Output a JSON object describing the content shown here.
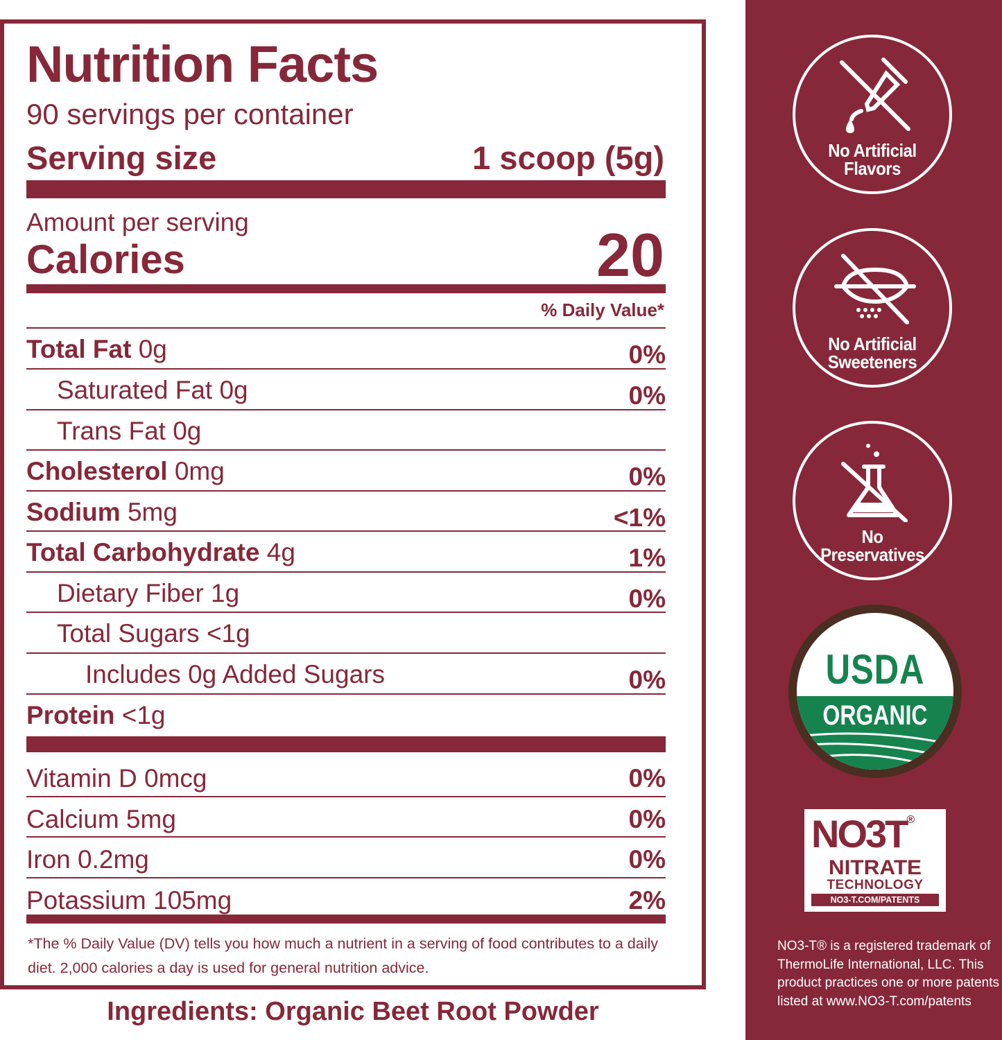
{
  "label": {
    "title": "Nutrition Facts",
    "servings": "90 servings per container",
    "serving_size_label": "Serving size",
    "serving_size_value": "1 scoop (5g)",
    "amount_label": "Amount per serving",
    "calories_label": "Calories",
    "calories_value": "20",
    "dv_header": "% Daily Value*",
    "nutrients": [
      {
        "bold": "Total Fat",
        "text": " 0g",
        "pct": "0%"
      },
      {
        "bold": "",
        "text": "Saturated Fat 0g",
        "pct": "0%"
      },
      {
        "bold": "",
        "text": "Trans Fat 0g",
        "pct": ""
      },
      {
        "bold": "Cholesterol",
        "text": " 0mg",
        "pct": "0%"
      },
      {
        "bold": "Sodium",
        "text": " 5mg",
        "pct": "<1%"
      },
      {
        "bold": "Total Carbohydrate",
        "text": " 4g",
        "pct": "1%"
      },
      {
        "bold": "",
        "text": "Dietary Fiber 1g",
        "pct": "0%"
      },
      {
        "bold": "",
        "text": "Total Sugars <1g",
        "pct": ""
      },
      {
        "bold": "",
        "text": "Includes 0g Added Sugars",
        "pct": "0%"
      },
      {
        "bold": "Protein",
        "text": " <1g",
        "pct": ""
      }
    ],
    "vitamins": [
      {
        "text": "Vitamin D 0mcg",
        "pct": "0%"
      },
      {
        "text": "Calcium 5mg",
        "pct": "0%"
      },
      {
        "text": "Iron 0.2mg",
        "pct": "0%"
      },
      {
        "text": "Potassium 105mg",
        "pct": "2%"
      }
    ],
    "footnote": "*The % Daily Value (DV) tells you how much a nutrient in a serving of food contributes to a daily diet. 2,000 calories a day is used for general nutrition advice."
  },
  "ingredients": "Ingredients: Organic Beet Root Powder",
  "sidebar": {
    "badges": [
      {
        "line1": "No Artificial",
        "line2": "Flavors",
        "icon": "dropper-icon"
      },
      {
        "line1": "No Artificial",
        "line2": "Sweeteners",
        "icon": "sweetener-icon"
      },
      {
        "line1": "No",
        "line2": "Preservatives",
        "icon": "flask-icon"
      }
    ],
    "usda_top": "USDA",
    "usda_band": "ORGANIC",
    "no3t_logo": "NO3T",
    "no3t_reg": "®",
    "no3t_nitrate": "NITRATE",
    "no3t_tech": "TECHNOLOGY",
    "no3t_url": "NO3-T.COM/PATENTS",
    "trademark": "NO3-T® is a registered trademark of ThermoLife International, LLC. This product practices one or more patents listed at www.NO3-T.com/patents"
  },
  "colors": {
    "brand": "#862839",
    "usda_green": "#16834f",
    "usda_brown": "#4a2e22"
  }
}
